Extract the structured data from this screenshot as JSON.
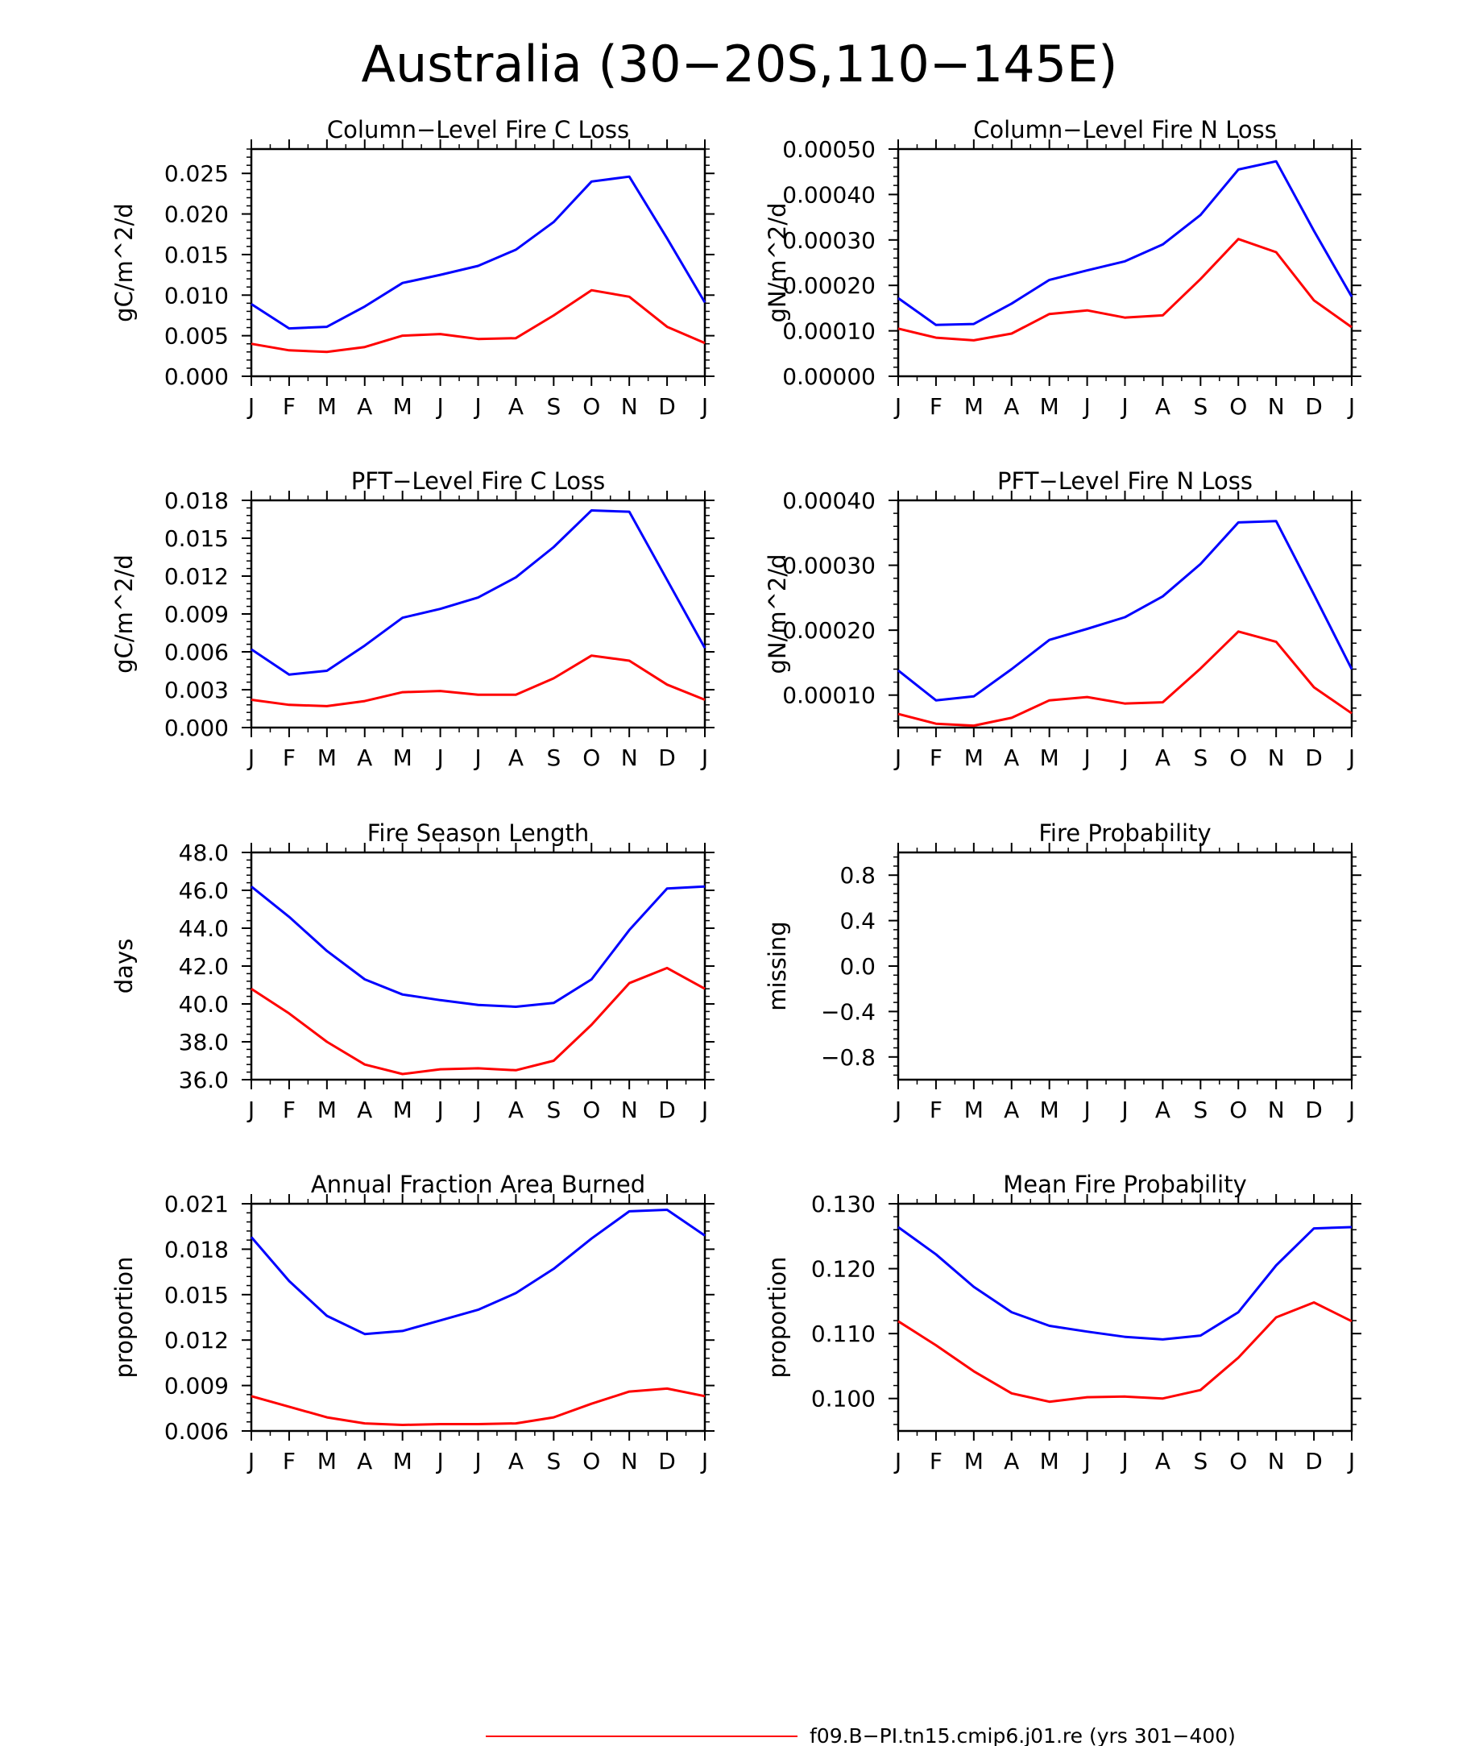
{
  "figure": {
    "title": "Australia (30−20S,110−145E)",
    "legend_label": "f09.B−PI.tn15.cmip6.j01.re (yrs 301−400)",
    "legend_color": "#ff0000"
  },
  "colors": {
    "series_blue": "#0000ff",
    "series_red": "#ff0000",
    "axis": "#000000"
  },
  "months": [
    "J",
    "F",
    "M",
    "A",
    "M",
    "J",
    "J",
    "A",
    "S",
    "O",
    "N",
    "D",
    "J"
  ],
  "chart_data": [
    {
      "type": "line",
      "title": "Column−Level Fire C Loss",
      "ylabel": "gC/m^2/d",
      "xlabel": "",
      "categories": [
        "J",
        "F",
        "M",
        "A",
        "M",
        "J",
        "J",
        "A",
        "S",
        "O",
        "N",
        "D",
        "J"
      ],
      "ylim": [
        0,
        0.028
      ],
      "yticks": [
        0,
        0.005,
        0.01,
        0.015,
        0.02,
        0.025
      ],
      "ytick_labels": [
        "0.000",
        "0.005",
        "0.010",
        "0.015",
        "0.020",
        "0.025"
      ],
      "series": [
        {
          "color": "#0000ff",
          "values": [
            0.0089,
            0.0059,
            0.0061,
            0.0086,
            0.0115,
            0.0125,
            0.0136,
            0.0156,
            0.019,
            0.024,
            0.0246,
            0.017,
            0.0091
          ]
        },
        {
          "color": "#ff0000",
          "values": [
            0.004,
            0.0032,
            0.003,
            0.0036,
            0.005,
            0.0052,
            0.0046,
            0.0047,
            0.0075,
            0.0106,
            0.0098,
            0.0061,
            0.0041
          ]
        }
      ],
      "grid": false
    },
    {
      "type": "line",
      "title": "Column−Level Fire N Loss",
      "ylabel": "gN/m^2/d",
      "xlabel": "",
      "categories": [
        "J",
        "F",
        "M",
        "A",
        "M",
        "J",
        "J",
        "A",
        "S",
        "O",
        "N",
        "D",
        "J"
      ],
      "ylim": [
        0,
        0.0005
      ],
      "yticks": [
        0,
        0.0001,
        0.0002,
        0.0003,
        0.0004,
        0.0005
      ],
      "ytick_labels": [
        "0.00000",
        "0.00010",
        "0.00020",
        "0.00030",
        "0.00040",
        "0.00050"
      ],
      "series": [
        {
          "color": "#0000ff",
          "values": [
            0.000172,
            0.000113,
            0.000115,
            0.00016,
            0.000212,
            0.000233,
            0.000253,
            0.00029,
            0.000355,
            0.000455,
            0.000473,
            0.00032,
            0.000175
          ]
        },
        {
          "color": "#ff0000",
          "values": [
            0.000105,
            8.5e-05,
            7.9e-05,
            9.4e-05,
            0.000137,
            0.000145,
            0.000129,
            0.000134,
            0.000214,
            0.000302,
            0.000273,
            0.000167,
            0.000108
          ]
        }
      ],
      "grid": false
    },
    {
      "type": "line",
      "title": "PFT−Level Fire C Loss",
      "ylabel": "gC/m^2/d",
      "xlabel": "",
      "categories": [
        "J",
        "F",
        "M",
        "A",
        "M",
        "J",
        "J",
        "A",
        "S",
        "O",
        "N",
        "D",
        "J"
      ],
      "ylim": [
        0,
        0.018
      ],
      "yticks": [
        0,
        0.003,
        0.006,
        0.009,
        0.012,
        0.015,
        0.018
      ],
      "ytick_labels": [
        "0.000",
        "0.003",
        "0.006",
        "0.009",
        "0.012",
        "0.015",
        "0.018"
      ],
      "series": [
        {
          "color": "#0000ff",
          "values": [
            0.0062,
            0.0042,
            0.0045,
            0.0065,
            0.0087,
            0.0094,
            0.0103,
            0.0119,
            0.0143,
            0.0172,
            0.0171,
            0.0117,
            0.0063
          ]
        },
        {
          "color": "#ff0000",
          "values": [
            0.0022,
            0.0018,
            0.0017,
            0.0021,
            0.0028,
            0.0029,
            0.0026,
            0.0026,
            0.0039,
            0.0057,
            0.0053,
            0.0034,
            0.0022
          ]
        }
      ],
      "grid": false
    },
    {
      "type": "line",
      "title": "PFT−Level Fire N Loss",
      "ylabel": "gN/m^2/d",
      "xlabel": "",
      "categories": [
        "J",
        "F",
        "M",
        "A",
        "M",
        "J",
        "J",
        "A",
        "S",
        "O",
        "N",
        "D",
        "J"
      ],
      "ylim": [
        5e-05,
        0.0004
      ],
      "yticks": [
        0.0001,
        0.0002,
        0.0003,
        0.0004
      ],
      "ytick_labels": [
        "0.00010",
        "0.00020",
        "0.00030",
        "0.00040"
      ],
      "series": [
        {
          "color": "#0000ff",
          "values": [
            0.000138,
            9.2e-05,
            9.8e-05,
            0.00014,
            0.000185,
            0.000202,
            0.00022,
            0.000252,
            0.000302,
            0.000366,
            0.000368,
            0.000255,
            0.00014
          ]
        },
        {
          "color": "#ff0000",
          "values": [
            7.1e-05,
            5.6e-05,
            5.3e-05,
            6.5e-05,
            9.2e-05,
            9.7e-05,
            8.7e-05,
            8.9e-05,
            0.000141,
            0.000198,
            0.000182,
            0.000112,
            7.2e-05
          ]
        }
      ],
      "grid": false
    },
    {
      "type": "line",
      "title": "Fire Season Length",
      "ylabel": "days",
      "xlabel": "",
      "categories": [
        "J",
        "F",
        "M",
        "A",
        "M",
        "J",
        "J",
        "A",
        "S",
        "O",
        "N",
        "D",
        "J"
      ],
      "ylim": [
        36,
        48
      ],
      "yticks": [
        36,
        38,
        40,
        42,
        44,
        46,
        48
      ],
      "ytick_labels": [
        "36.0",
        "38.0",
        "40.0",
        "42.0",
        "44.0",
        "46.0",
        "48.0"
      ],
      "series": [
        {
          "color": "#0000ff",
          "values": [
            46.2,
            44.6,
            42.8,
            41.3,
            40.5,
            40.2,
            39.95,
            39.85,
            40.05,
            41.3,
            43.9,
            46.1,
            46.2
          ]
        },
        {
          "color": "#ff0000",
          "values": [
            40.8,
            39.5,
            38.0,
            36.8,
            36.3,
            36.55,
            36.6,
            36.5,
            37.0,
            38.9,
            41.1,
            41.9,
            40.8
          ]
        }
      ],
      "grid": false
    },
    {
      "type": "line",
      "title": "Fire Probability",
      "ylabel": "missing",
      "xlabel": "",
      "categories": [
        "J",
        "F",
        "M",
        "A",
        "M",
        "J",
        "J",
        "A",
        "S",
        "O",
        "N",
        "D",
        "J"
      ],
      "ylim": [
        -1.0,
        1.0
      ],
      "yticks": [
        -0.8,
        -0.4,
        0.0,
        0.4,
        0.8
      ],
      "ytick_labels": [
        "−0.8",
        "−0.4",
        "0.0",
        "0.4",
        "0.8"
      ],
      "series": [],
      "grid": false
    },
    {
      "type": "line",
      "title": "Annual Fraction Area Burned",
      "ylabel": "proportion",
      "xlabel": "",
      "categories": [
        "J",
        "F",
        "M",
        "A",
        "M",
        "J",
        "J",
        "A",
        "S",
        "O",
        "N",
        "D",
        "J"
      ],
      "ylim": [
        0.006,
        0.021
      ],
      "yticks": [
        0.006,
        0.009,
        0.012,
        0.015,
        0.018,
        0.021
      ],
      "ytick_labels": [
        "0.006",
        "0.009",
        "0.012",
        "0.015",
        "0.018",
        "0.021"
      ],
      "series": [
        {
          "color": "#0000ff",
          "values": [
            0.0188,
            0.0159,
            0.0136,
            0.0124,
            0.0126,
            0.0133,
            0.014,
            0.0151,
            0.0167,
            0.0187,
            0.0205,
            0.0206,
            0.0189
          ]
        },
        {
          "color": "#ff0000",
          "values": [
            0.0083,
            0.0076,
            0.0069,
            0.0065,
            0.0064,
            0.00645,
            0.00645,
            0.0065,
            0.0069,
            0.0078,
            0.0086,
            0.0088,
            0.0083
          ]
        }
      ],
      "grid": false
    },
    {
      "type": "line",
      "title": "Mean Fire Probability",
      "ylabel": "proportion",
      "xlabel": "",
      "categories": [
        "J",
        "F",
        "M",
        "A",
        "M",
        "J",
        "J",
        "A",
        "S",
        "O",
        "N",
        "D",
        "J"
      ],
      "ylim": [
        0.095,
        0.13
      ],
      "yticks": [
        0.1,
        0.11,
        0.12,
        0.13
      ],
      "ytick_labels": [
        "0.100",
        "0.110",
        "0.120",
        "0.130"
      ],
      "series": [
        {
          "color": "#0000ff",
          "values": [
            0.1264,
            0.1222,
            0.1172,
            0.1133,
            0.1112,
            0.1103,
            0.1095,
            0.1091,
            0.1097,
            0.1133,
            0.1205,
            0.1262,
            0.1264
          ]
        },
        {
          "color": "#ff0000",
          "values": [
            0.1119,
            0.1082,
            0.1042,
            0.1008,
            0.0995,
            0.1002,
            0.1003,
            0.1,
            0.1013,
            0.1063,
            0.1125,
            0.1148,
            0.1119
          ]
        }
      ],
      "grid": false
    }
  ]
}
